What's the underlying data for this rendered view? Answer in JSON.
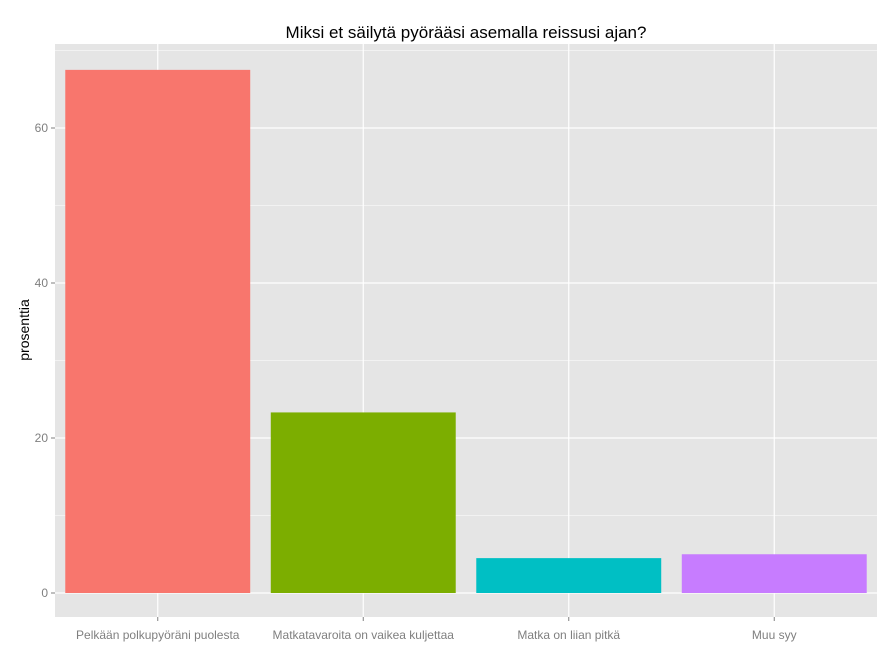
{
  "chart_data": {
    "type": "bar",
    "title": "Miksi et säilytä pyörääsi asemalla reissusi ajan?",
    "xlabel": "",
    "ylabel": "prosenttia",
    "categories": [
      "Pelkään polkupyöräni puolesta",
      "Matkatavaroita on vaikea kuljettaa",
      "Matka on liian pitkä",
      "Muu syy"
    ],
    "values": [
      67.5,
      23.3,
      4.5,
      5.0
    ],
    "colors": [
      "#F8766D",
      "#7CAE00",
      "#00BFC4",
      "#C77CFF"
    ],
    "ylim": [
      0,
      70.7
    ],
    "yticks": [
      0,
      20,
      40,
      60
    ],
    "ytick_labels": [
      "0",
      "20",
      "40",
      "60"
    ],
    "grid": true,
    "legend": "none",
    "panel_background": "#E5E5E5",
    "grid_color": "#FFFFFF"
  }
}
